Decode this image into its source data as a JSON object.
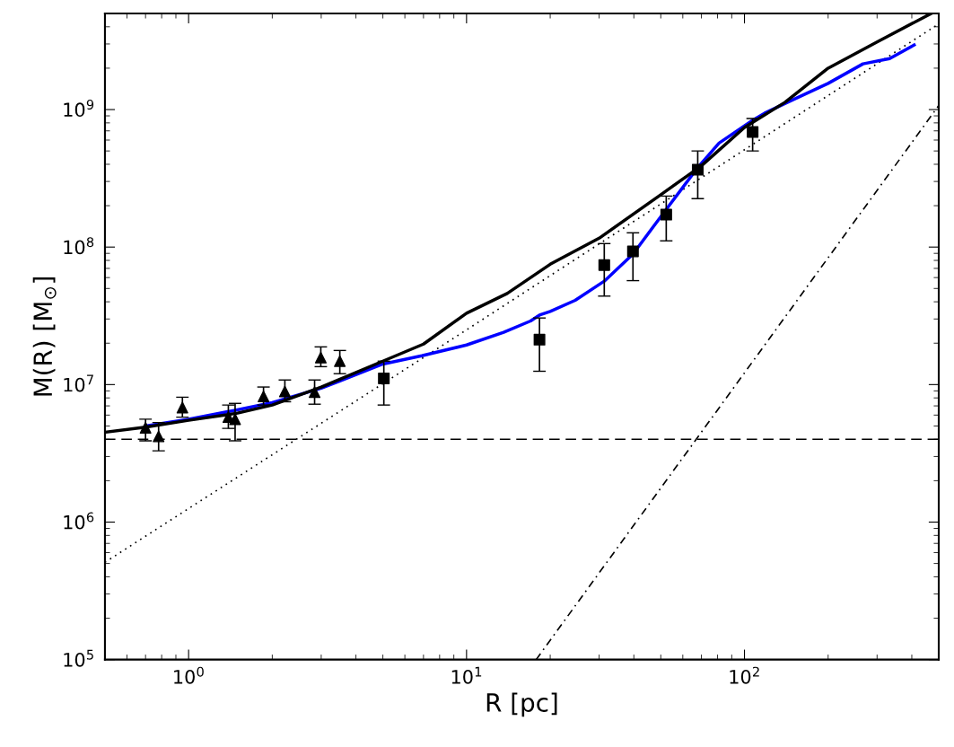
{
  "chart_data": {
    "type": "scatter",
    "xlabel": "R [pc]",
    "ylabel": "M(R) [M$_{⊙}$]",
    "log": "xy",
    "grid": false,
    "legend": false,
    "xlim": [
      0.5,
      500
    ],
    "ylim": [
      100000,
      5000000000
    ],
    "xticks": [
      {
        "value": 1,
        "label": "10$^{0}$"
      },
      {
        "value": 10,
        "label": "10$^{1}$"
      },
      {
        "value": 100,
        "label": "10$^{2}$"
      }
    ],
    "yticks": [
      {
        "value": 100000,
        "label": "10$^{5}$"
      },
      {
        "value": 1000000,
        "label": "10$^{6}$"
      },
      {
        "value": 10000000,
        "label": "10$^{7}$"
      },
      {
        "value": 100000000,
        "label": "10$^{8}$"
      },
      {
        "value": 1000000000,
        "label": "10$^{9}$"
      }
    ],
    "ref_lines": [
      {
        "axis": "y",
        "value": 4000000,
        "color": "#000000",
        "line_style": "dashed"
      }
    ],
    "series": [
      {
        "type": "line",
        "color": "#000000",
        "line_style": "dotted",
        "marker": "none",
        "x": [
          0.5,
          10,
          500
        ],
        "values": [
          510000,
          25000000,
          4200000000
        ]
      },
      {
        "type": "line",
        "color": "#000000",
        "line_style": "dashdot",
        "marker": "none",
        "x": [
          17.8,
          500
        ],
        "values": [
          100000,
          1070000000
        ]
      },
      {
        "type": "line",
        "color": "#0000ff",
        "line_style": "solid",
        "marker": "none",
        "x": [
          0.7,
          1.0,
          1.47,
          2.0,
          3.0,
          3.5,
          5.0,
          6.9,
          10,
          13.6,
          17.0,
          18.3,
          20,
          24.6,
          31.3,
          39.7,
          52.3,
          68,
          81,
          107,
          118,
          147,
          200,
          267,
          333,
          408
        ],
        "values": [
          5000000,
          5600000,
          6500000,
          7400000,
          9400000,
          10600000,
          14100000,
          16200000,
          19400000,
          24000000,
          29000000,
          32000000,
          34000000,
          41000000,
          56500000,
          89000000,
          188000000,
          380000000,
          570000000,
          835000000,
          940000000,
          1160000000,
          1550000000,
          2150000000,
          2350000000,
          2950000000
        ]
      },
      {
        "type": "line",
        "color": "#000000",
        "line_style": "solid",
        "marker": "none",
        "x": [
          0.5,
          0.7,
          1,
          1.5,
          2,
          3,
          5,
          7,
          10,
          14,
          20,
          30,
          50,
          70,
          100,
          140,
          200,
          300,
          470
        ],
        "values": [
          4500000,
          4900000,
          5500000,
          6200000,
          7100000,
          9600000,
          14800000,
          19700000,
          33000000,
          46000000,
          75000000,
          116000000,
          240000000,
          390000000,
          740000000,
          1130000000,
          2000000000,
          3100000000,
          5000000000
        ]
      },
      {
        "color": "#000000",
        "marker": "triangle",
        "x": [
          0.7,
          0.78,
          0.95,
          1.39,
          1.47,
          1.86,
          2.22,
          2.84,
          2.99,
          3.5
        ],
        "values": [
          4850000,
          4200000,
          6800000,
          5800000,
          5600000,
          8200000,
          8900000,
          8800000,
          15700000,
          14800000
        ],
        "errors": [
          [
            3900000,
            5600000
          ],
          [
            3300000,
            5300000
          ],
          [
            5800000,
            8100000
          ],
          [
            4800000,
            7100000
          ],
          [
            3900000,
            7300000
          ],
          [
            7100000,
            9600000
          ],
          [
            7500000,
            10800000
          ],
          [
            7200000,
            10800000
          ],
          [
            13500000,
            18800000
          ],
          [
            12000000,
            17700000
          ]
        ]
      },
      {
        "color": "#000000",
        "marker": "square",
        "x": [
          5.04,
          18.3,
          31.3,
          39.7,
          52.3,
          67.9,
          107
        ],
        "values": [
          11100000,
          21200000,
          74000000,
          93000000,
          172000000,
          365000000,
          687000000
        ],
        "errors": [
          [
            7100000,
            14800000
          ],
          [
            12500000,
            30500000
          ],
          [
            44000000,
            106000000
          ],
          [
            57000000,
            127000000
          ],
          [
            111000000,
            235000000
          ],
          [
            225000000,
            500000000
          ],
          [
            500000000,
            860000000
          ]
        ]
      }
    ]
  }
}
